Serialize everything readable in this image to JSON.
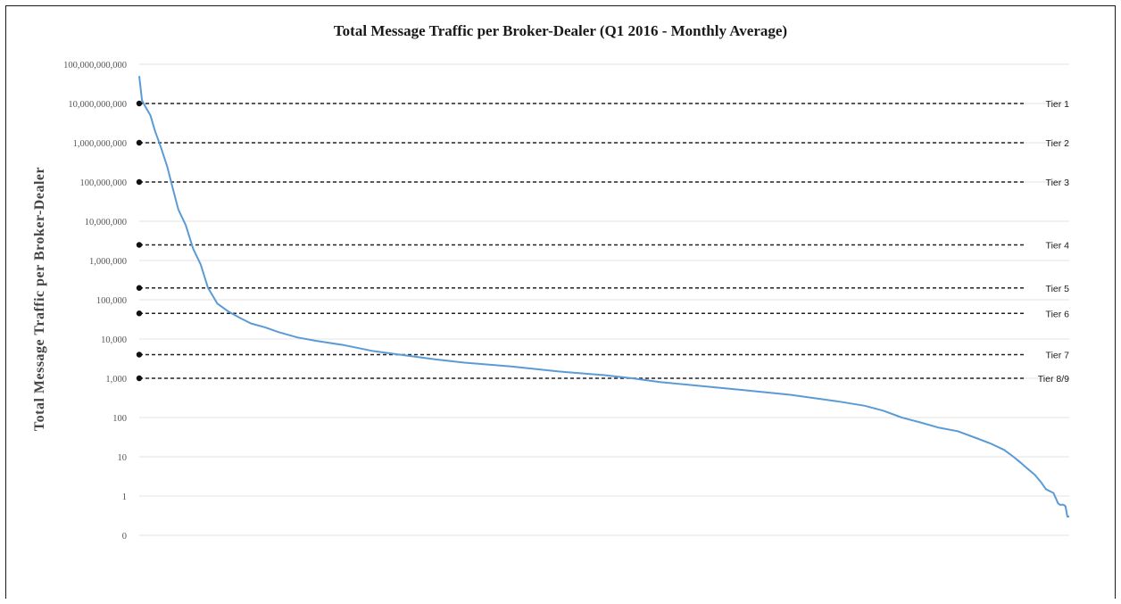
{
  "chart_data": {
    "type": "line",
    "title": "Total Message Traffic per Broker-Dealer (Q1 2016 - Monthly Average)",
    "xlabel": "",
    "ylabel": "Total Message Traffic per Broker-Dealer",
    "yscale": "log",
    "ylim": [
      0.1,
      100000000000
    ],
    "xlim": [
      0,
      100
    ],
    "grid": true,
    "yticks": [
      {
        "value": 100000000000,
        "label": "100,000,000,000"
      },
      {
        "value": 10000000000,
        "label": "10,000,000,000"
      },
      {
        "value": 1000000000,
        "label": "1,000,000,000"
      },
      {
        "value": 100000000,
        "label": "100,000,000"
      },
      {
        "value": 10000000,
        "label": "10,000,000"
      },
      {
        "value": 1000000,
        "label": "1,000,000"
      },
      {
        "value": 100000,
        "label": "100,000"
      },
      {
        "value": 10000,
        "label": "10,000"
      },
      {
        "value": 1000,
        "label": "1,000"
      },
      {
        "value": 100,
        "label": "100"
      },
      {
        "value": 10,
        "label": "10"
      },
      {
        "value": 1,
        "label": "1"
      },
      {
        "value": 0.1,
        "label": "0"
      }
    ],
    "series": [
      {
        "color": "#5b9bd5",
        "x": [
          0,
          0.3,
          0.7,
          1.2,
          1.7,
          2.3,
          3.0,
          3.6,
          4.2,
          5.0,
          5.8,
          6.6,
          7.4,
          8.4,
          9.6,
          10.8,
          12.0,
          13.5,
          15.0,
          17.0,
          19.0,
          22.0,
          25.0,
          28.0,
          32.0,
          35.0,
          40.0,
          45.0,
          50.0,
          53.0,
          56.0,
          60.0,
          65.0,
          70.0,
          75.0,
          78.0,
          80.0,
          82.0,
          84.0,
          86.0,
          88.0,
          90.0,
          91.5,
          93.0,
          94.0,
          94.8,
          95.5,
          96.3,
          97.0,
          97.5,
          98.0,
          98.3,
          98.8,
          99.0,
          99.4,
          99.6,
          99.8,
          100.0
        ],
        "y": [
          50000000000,
          12000000000,
          8000000000,
          5000000000,
          2000000000,
          800000000,
          250000000,
          70000000,
          20000000,
          8000000,
          2000000,
          800000,
          200000,
          80000,
          50000,
          35000,
          25000,
          20000,
          15000,
          11000,
          9000,
          7000,
          5000,
          4000,
          3000,
          2500,
          2000,
          1500,
          1200,
          1000,
          800,
          650,
          500,
          380,
          260,
          200,
          150,
          100,
          75,
          55,
          45,
          30,
          22,
          15,
          10,
          7,
          5,
          3.5,
          2.2,
          1.5,
          1.3,
          1.2,
          0.65,
          0.6,
          0.6,
          0.55,
          0.3,
          0.3
        ]
      }
    ],
    "tiers": [
      {
        "label": "Tier 1",
        "value": 10000000000
      },
      {
        "label": "Tier 2",
        "value": 1000000000
      },
      {
        "label": "Tier 3",
        "value": 100000000
      },
      {
        "label": "Tier 4",
        "value": 2500000
      },
      {
        "label": "Tier 5",
        "value": 200000
      },
      {
        "label": "Tier 6",
        "value": 45000
      },
      {
        "label": "Tier 7",
        "value": 4000
      },
      {
        "label": "Tier 8/9",
        "value": 1000
      }
    ]
  }
}
